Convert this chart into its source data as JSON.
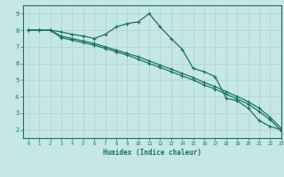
{
  "xlabel": "Humidex (Indice chaleur)",
  "xlim": [
    -0.5,
    23
  ],
  "ylim": [
    1.5,
    9.5
  ],
  "xticks": [
    0,
    1,
    2,
    3,
    4,
    5,
    6,
    7,
    8,
    9,
    10,
    11,
    12,
    13,
    14,
    15,
    16,
    17,
    18,
    19,
    20,
    21,
    22,
    23
  ],
  "yticks": [
    2,
    3,
    4,
    5,
    6,
    7,
    8,
    9
  ],
  "bg_color": "#c5e8e5",
  "grid_color": "#b0d5d0",
  "line_color": "#1a7068",
  "line1_x": [
    0,
    1,
    2,
    3,
    4,
    5,
    6,
    7,
    8,
    9,
    10,
    11,
    12,
    13,
    14,
    15,
    16,
    17,
    18,
    19,
    20,
    21,
    22,
    23
  ],
  "line1_y": [
    8.0,
    8.0,
    8.0,
    7.9,
    7.75,
    7.65,
    7.5,
    7.75,
    8.2,
    8.4,
    8.5,
    9.0,
    8.2,
    7.5,
    6.85,
    5.7,
    5.5,
    5.2,
    3.9,
    3.75,
    3.3,
    2.55,
    2.2,
    2.0
  ],
  "line2_x": [
    0,
    1,
    2,
    3,
    4,
    5,
    6,
    7,
    8,
    9,
    10,
    11,
    12,
    13,
    14,
    15,
    16,
    17,
    18,
    19,
    20,
    21,
    22,
    23
  ],
  "line2_y": [
    8.0,
    8.0,
    8.0,
    7.65,
    7.5,
    7.35,
    7.2,
    7.0,
    6.8,
    6.6,
    6.4,
    6.15,
    5.9,
    5.65,
    5.4,
    5.15,
    4.85,
    4.6,
    4.3,
    4.0,
    3.7,
    3.3,
    2.75,
    2.1
  ],
  "line3_x": [
    0,
    1,
    2,
    3,
    4,
    5,
    6,
    7,
    8,
    9,
    10,
    11,
    12,
    13,
    14,
    15,
    16,
    17,
    18,
    19,
    20,
    21,
    22,
    23
  ],
  "line3_y": [
    8.0,
    8.0,
    8.0,
    7.55,
    7.4,
    7.25,
    7.1,
    6.9,
    6.7,
    6.5,
    6.25,
    6.0,
    5.75,
    5.5,
    5.25,
    5.0,
    4.7,
    4.45,
    4.15,
    3.85,
    3.55,
    3.1,
    2.6,
    1.95
  ]
}
